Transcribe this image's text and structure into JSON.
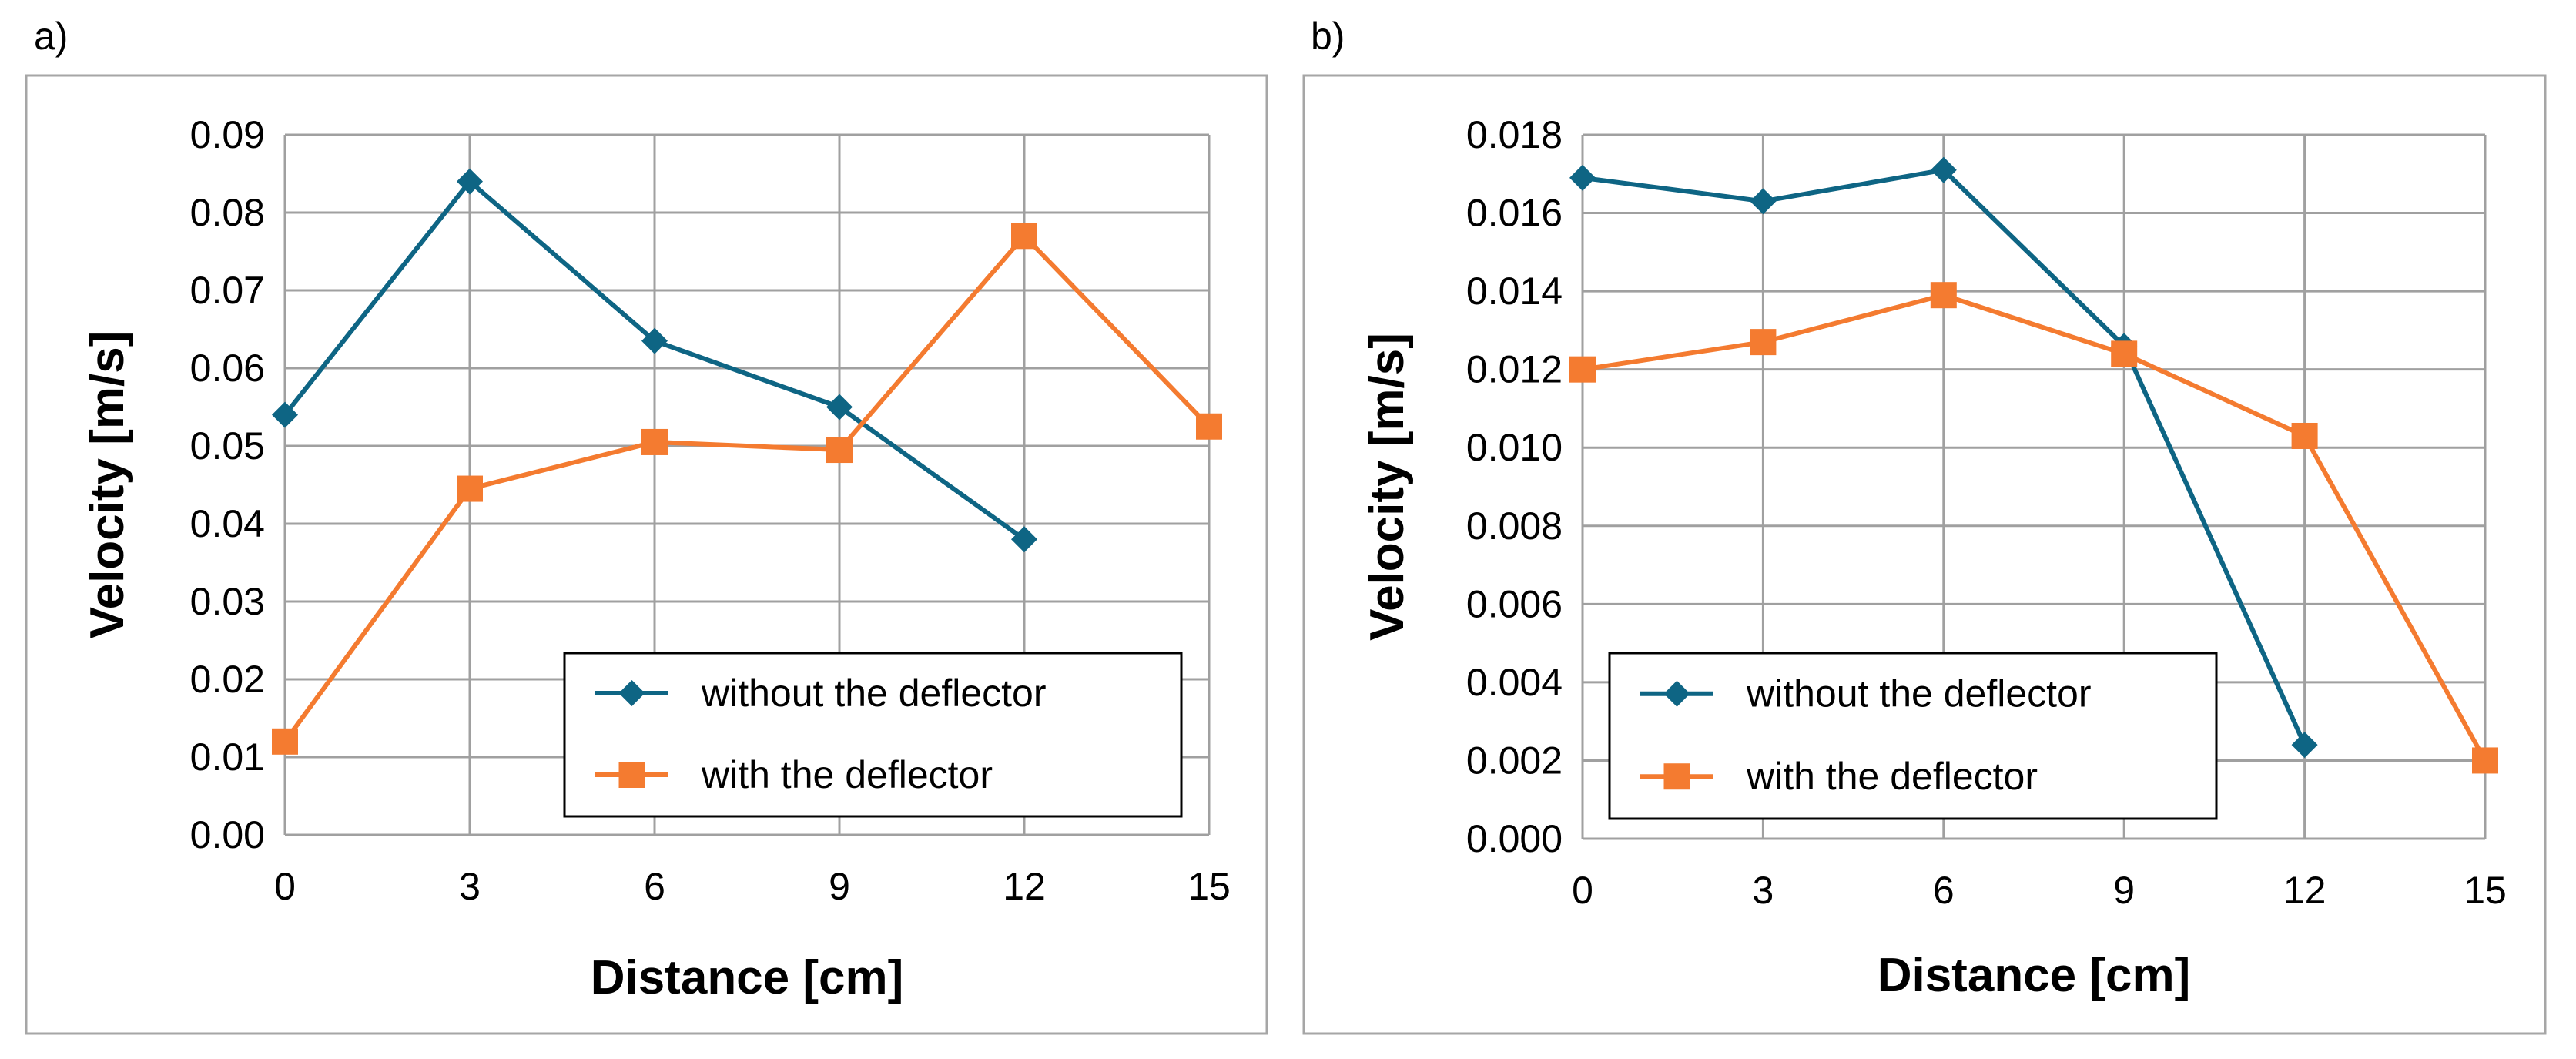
{
  "panels": [
    {
      "tag": "a)",
      "chart_data": {
        "type": "line",
        "xlabel": "Distance [cm]",
        "ylabel": "Velocity [m/s]",
        "x_ticks": [
          "0",
          "3",
          "6",
          "9",
          "12",
          "15"
        ],
        "y_ticks": [
          "0.00",
          "0.01",
          "0.02",
          "0.03",
          "0.04",
          "0.05",
          "0.06",
          "0.07",
          "0.08",
          "0.09"
        ],
        "xlim": [
          0,
          15
        ],
        "ylim": [
          0,
          0.09
        ],
        "grid": true,
        "legend_position": "bottom-right",
        "series": [
          {
            "name": "without the deflector",
            "color": "#0e6584",
            "marker": "diamond",
            "x": [
              0,
              3,
              6,
              9,
              12
            ],
            "y": [
              0.054,
              0.084,
              0.0635,
              0.055,
              0.038
            ]
          },
          {
            "name": "with the deflector",
            "color": "#f47b30",
            "marker": "square",
            "x": [
              0,
              3,
              6,
              9,
              12,
              15
            ],
            "y": [
              0.012,
              0.0445,
              0.0505,
              0.0495,
              0.077,
              0.0525
            ]
          }
        ]
      }
    },
    {
      "tag": "b)",
      "chart_data": {
        "type": "line",
        "xlabel": "Distance [cm]",
        "ylabel": "Velocity [m/s]",
        "x_ticks": [
          "0",
          "3",
          "6",
          "9",
          "12",
          "15"
        ],
        "y_ticks": [
          "0.000",
          "0.002",
          "0.004",
          "0.006",
          "0.008",
          "0.010",
          "0.012",
          "0.014",
          "0.016",
          "0.018"
        ],
        "xlim": [
          0,
          15
        ],
        "ylim": [
          0,
          0.018
        ],
        "grid": true,
        "legend_position": "bottom-left",
        "series": [
          {
            "name": "without the deflector",
            "color": "#0e6584",
            "marker": "diamond",
            "x": [
              0,
              3,
              6,
              9,
              12
            ],
            "y": [
              0.0169,
              0.0163,
              0.0171,
              0.0126,
              0.0024
            ]
          },
          {
            "name": "with the deflector",
            "color": "#f47b30",
            "marker": "square",
            "x": [
              0,
              3,
              6,
              9,
              12,
              15
            ],
            "y": [
              0.012,
              0.0127,
              0.0139,
              0.0124,
              0.0103,
              0.002
            ]
          }
        ]
      }
    }
  ]
}
